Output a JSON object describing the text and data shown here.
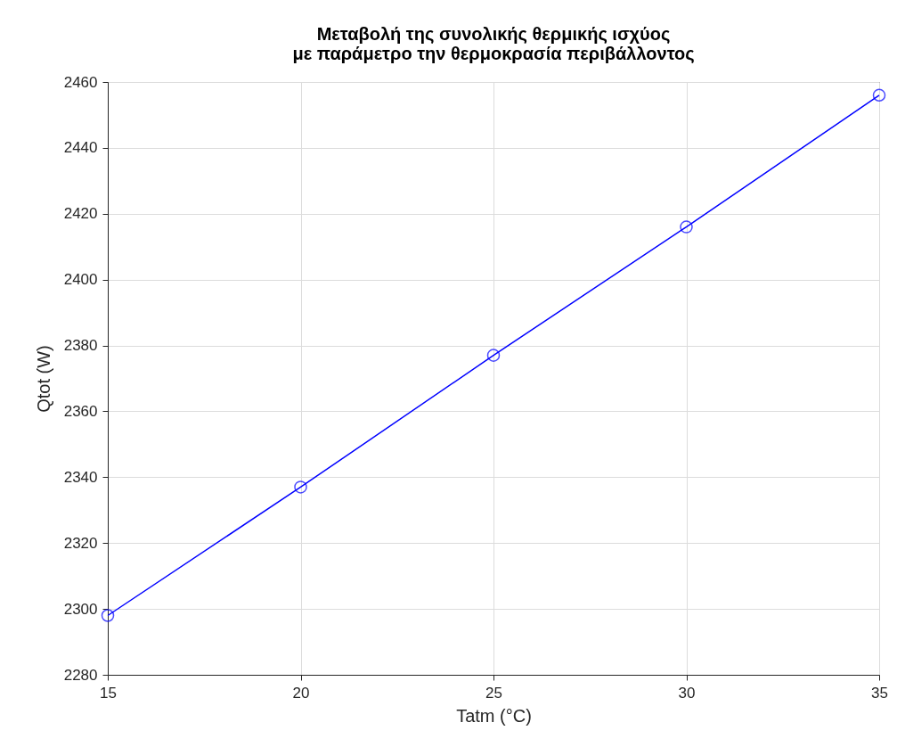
{
  "chart_data": {
    "type": "line",
    "title": "Μεταβολή της συνολικής θερμικής ισχύος\nμε παράμετρο την θερμοκρασία περιβάλλοντος",
    "xlabel": "Tatm (°C)",
    "ylabel": "Qtot (W)",
    "x": [
      15,
      20,
      25,
      30,
      35
    ],
    "series": [
      {
        "color": "#0000ff",
        "values": [
          2298,
          2337,
          2377,
          2416,
          2456
        ]
      }
    ],
    "xlim": [
      15,
      35
    ],
    "xticks": [
      15,
      20,
      25,
      30,
      35
    ],
    "ylim": [
      2280,
      2460
    ],
    "yticks": [
      2280,
      2300,
      2320,
      2340,
      2360,
      2380,
      2400,
      2420,
      2440,
      2460
    ],
    "grid": true,
    "marker": "circle",
    "line_style": "solid"
  }
}
